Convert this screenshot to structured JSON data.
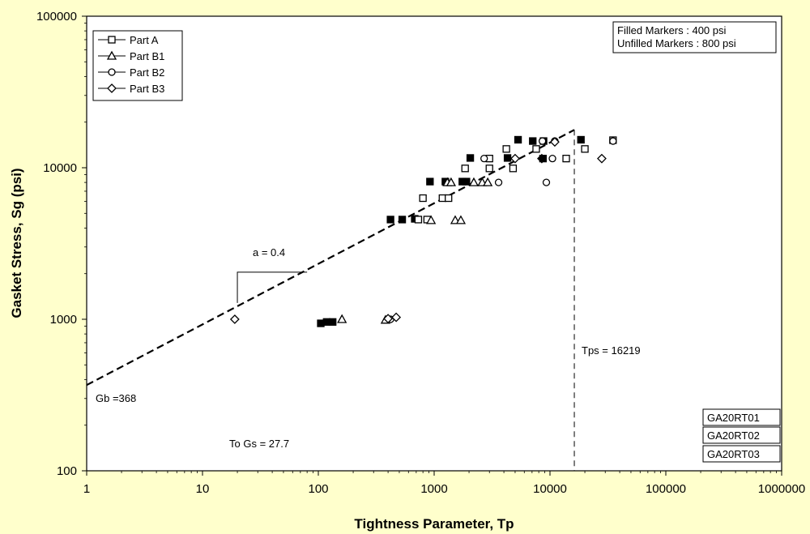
{
  "chart_data": {
    "type": "scatter",
    "title": "",
    "xlabel": "Tightness Parameter, Tp",
    "ylabel": "Gasket Stress, Sg (psi)",
    "xscale": "log",
    "yscale": "log",
    "xlim": [
      1,
      1000000
    ],
    "ylim": [
      100,
      100000
    ],
    "x_ticks": [
      1,
      10,
      100,
      1000,
      10000,
      100000,
      1000000
    ],
    "x_tick_labels": [
      "1",
      "10",
      "100",
      "1000",
      "10000",
      "100000",
      "1000000"
    ],
    "y_ticks": [
      100,
      1000,
      10000,
      100000
    ],
    "y_tick_labels": [
      "100",
      "1000",
      "10000",
      "100000"
    ],
    "legend_position": "top-left",
    "legend": [
      {
        "name": "Part A",
        "marker": "square"
      },
      {
        "name": "Part B1",
        "marker": "triangle"
      },
      {
        "name": "Part B2",
        "marker": "circle"
      },
      {
        "name": "Part B3",
        "marker": "diamond"
      }
    ],
    "marker_note": [
      "Filled Markers : 400 psi",
      "Unfilled Markers : 800 psi"
    ],
    "test_ids": [
      "GA20RT01",
      "GA20RT02",
      "GA20RT03"
    ],
    "fit_line": {
      "label_a": "a = 0.4",
      "Gb_label": "Gb =368",
      "Gb": 368,
      "a": 0.4,
      "x_range": [
        1,
        16219
      ]
    },
    "tps_line": {
      "label": "Tps = 16219",
      "value": 16219
    },
    "gs_label": "To Gs =  27.7",
    "series": [
      {
        "name": "Part A",
        "marker": "square",
        "points": [
          {
            "x": 105,
            "y": 940,
            "filled": true
          },
          {
            "x": 118,
            "y": 960,
            "filled": true
          },
          {
            "x": 133,
            "y": 960,
            "filled": true
          },
          {
            "x": 420,
            "y": 4550,
            "filled": true
          },
          {
            "x": 530,
            "y": 4550,
            "filled": true
          },
          {
            "x": 680,
            "y": 4600,
            "filled": true
          },
          {
            "x": 730,
            "y": 4550,
            "filled": false
          },
          {
            "x": 870,
            "y": 4550,
            "filled": false
          },
          {
            "x": 800,
            "y": 6300,
            "filled": false
          },
          {
            "x": 1180,
            "y": 6300,
            "filled": false
          },
          {
            "x": 1330,
            "y": 6300,
            "filled": false
          },
          {
            "x": 920,
            "y": 8100,
            "filled": true
          },
          {
            "x": 1250,
            "y": 8100,
            "filled": true
          },
          {
            "x": 1750,
            "y": 8100,
            "filled": true
          },
          {
            "x": 1900,
            "y": 8100,
            "filled": true
          },
          {
            "x": 1850,
            "y": 9900,
            "filled": false
          },
          {
            "x": 3000,
            "y": 9900,
            "filled": false
          },
          {
            "x": 4800,
            "y": 9900,
            "filled": false
          },
          {
            "x": 2050,
            "y": 11600,
            "filled": true
          },
          {
            "x": 4300,
            "y": 11600,
            "filled": true
          },
          {
            "x": 8700,
            "y": 11500,
            "filled": true
          },
          {
            "x": 3000,
            "y": 11500,
            "filled": false
          },
          {
            "x": 13800,
            "y": 11500,
            "filled": false
          },
          {
            "x": 4200,
            "y": 13300,
            "filled": false
          },
          {
            "x": 7600,
            "y": 13300,
            "filled": false
          },
          {
            "x": 20000,
            "y": 13300,
            "filled": false
          },
          {
            "x": 5300,
            "y": 15300,
            "filled": true
          },
          {
            "x": 7100,
            "y": 15000,
            "filled": true
          },
          {
            "x": 8800,
            "y": 15000,
            "filled": true
          },
          {
            "x": 18500,
            "y": 15300,
            "filled": true
          },
          {
            "x": 35000,
            "y": 15200,
            "filled": false
          }
        ]
      },
      {
        "name": "Part B1",
        "marker": "triangle",
        "points": [
          {
            "x": 160,
            "y": 1000,
            "filled": false
          },
          {
            "x": 380,
            "y": 990,
            "filled": false
          },
          {
            "x": 940,
            "y": 4500,
            "filled": false
          },
          {
            "x": 1520,
            "y": 4500,
            "filled": false
          },
          {
            "x": 1700,
            "y": 4500,
            "filled": false
          },
          {
            "x": 1300,
            "y": 8000,
            "filled": false
          },
          {
            "x": 1400,
            "y": 8000,
            "filled": false
          },
          {
            "x": 2200,
            "y": 8000,
            "filled": false
          },
          {
            "x": 2600,
            "y": 8000,
            "filled": false
          },
          {
            "x": 2900,
            "y": 8000,
            "filled": false
          }
        ]
      },
      {
        "name": "Part B2",
        "marker": "circle",
        "points": [
          {
            "x": 420,
            "y": 1000,
            "filled": false
          },
          {
            "x": 2700,
            "y": 11500,
            "filled": false
          },
          {
            "x": 3600,
            "y": 8000,
            "filled": false
          },
          {
            "x": 9300,
            "y": 8000,
            "filled": false
          },
          {
            "x": 8600,
            "y": 15000,
            "filled": false
          },
          {
            "x": 11000,
            "y": 15000,
            "filled": false
          },
          {
            "x": 10500,
            "y": 11500,
            "filled": false
          },
          {
            "x": 35000,
            "y": 15000,
            "filled": false
          }
        ]
      },
      {
        "name": "Part B3",
        "marker": "diamond",
        "points": [
          {
            "x": 19,
            "y": 1000,
            "filled": false
          },
          {
            "x": 400,
            "y": 1010,
            "filled": false
          },
          {
            "x": 470,
            "y": 1030,
            "filled": false
          },
          {
            "x": 5000,
            "y": 11500,
            "filled": false
          },
          {
            "x": 8500,
            "y": 11500,
            "filled": true
          },
          {
            "x": 11000,
            "y": 14800,
            "filled": false
          },
          {
            "x": 28000,
            "y": 11500,
            "filled": false
          }
        ]
      }
    ]
  }
}
